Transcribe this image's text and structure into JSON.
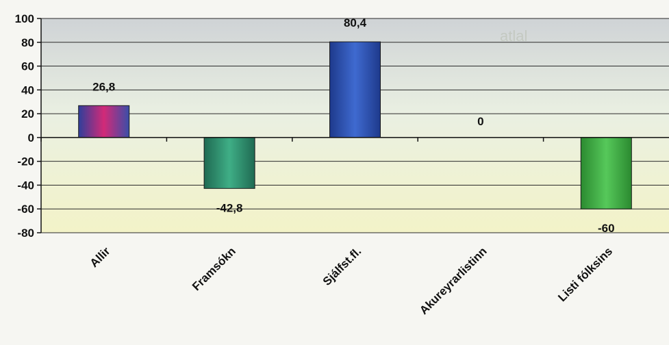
{
  "chart_data": {
    "type": "bar",
    "categories": [
      "Allir",
      "Framsókn",
      "Sjálfst.fl.",
      "Akureyrarlistinn",
      "Listi fólksins"
    ],
    "values": [
      26.8,
      -42.8,
      80.4,
      0,
      -60
    ],
    "value_labels": [
      "26,8",
      "-42,8",
      "80,4",
      "0",
      "-60"
    ],
    "y_ticks": [
      100,
      80,
      60,
      40,
      20,
      0,
      -20,
      -40,
      -60,
      -80
    ],
    "ylim": [
      -80,
      100
    ],
    "grid": true,
    "legend": "none",
    "colors": [
      "#b0306e",
      "#2a8a6a",
      "#2a4fb0",
      "#2a8a6a",
      "#3aa840"
    ]
  }
}
